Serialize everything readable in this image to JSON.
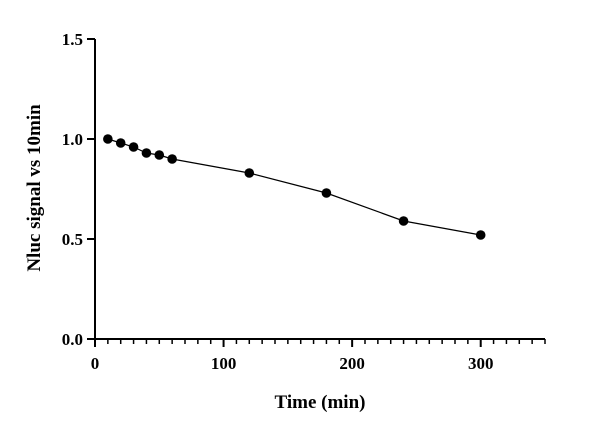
{
  "chart_data": {
    "type": "line",
    "title": "",
    "xlabel": "Time (min)",
    "ylabel": "Nluc signal vs 10min",
    "xlim": [
      0,
      350
    ],
    "ylim": [
      0,
      1.5
    ],
    "x_ticks": [
      0,
      100,
      200,
      300
    ],
    "x_tick_labels": [
      "0",
      "100",
      "200",
      "300"
    ],
    "x_minor_step": 10,
    "y_ticks": [
      0,
      0.5,
      1.0,
      1.5
    ],
    "y_tick_labels": [
      "0.0",
      "0.5",
      "1.0",
      "1.5"
    ],
    "grid": false,
    "legend": "none",
    "series": [
      {
        "x": [
          10,
          20,
          30,
          40,
          50,
          60,
          120,
          180,
          240,
          300
        ],
        "y": [
          1.0,
          0.98,
          0.96,
          0.93,
          0.92,
          0.9,
          0.83,
          0.73,
          0.59,
          0.52
        ],
        "color": "#000000",
        "marker": "circle"
      }
    ]
  }
}
